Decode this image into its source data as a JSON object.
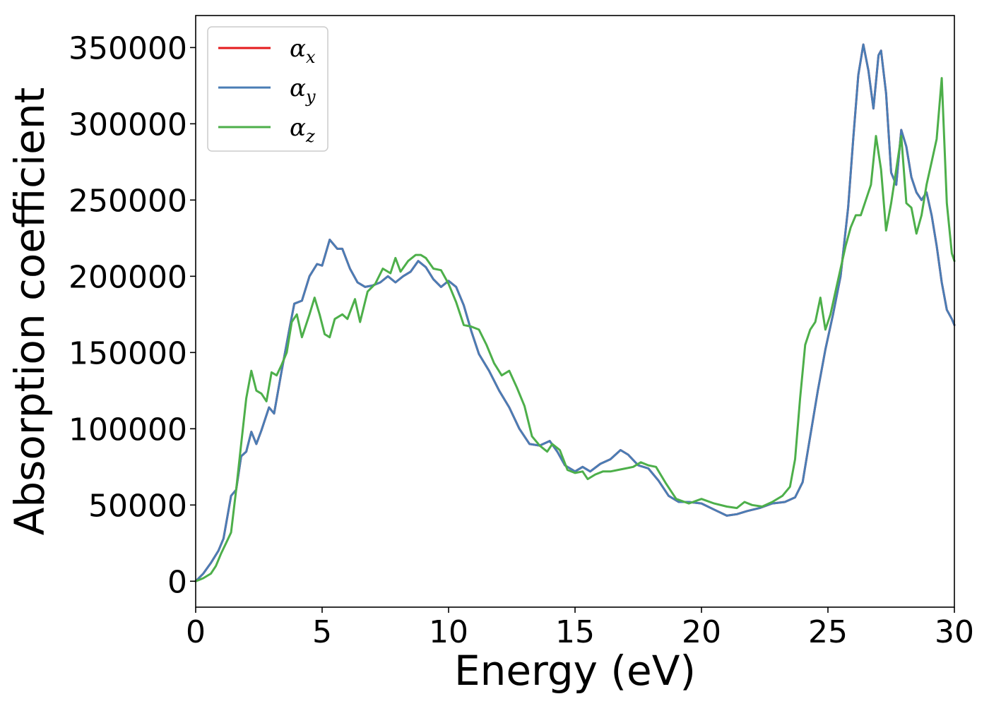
{
  "chart_data": {
    "type": "line",
    "xlabel": "Energy (eV)",
    "ylabel": "Absorption coefficient",
    "xlim": [
      0,
      30
    ],
    "ylim": [
      -17000,
      371000
    ],
    "xticks": [
      0,
      5,
      10,
      15,
      20,
      25,
      30
    ],
    "yticks": [
      0,
      50000,
      100000,
      150000,
      200000,
      250000,
      300000,
      350000
    ],
    "grid": false,
    "legend_placement": "top-left",
    "series": [
      {
        "name": "α",
        "sub": "x",
        "color": "#e41a1c",
        "x": [
          0,
          0.3,
          0.6,
          0.9,
          1.1,
          1.4,
          1.6,
          1.8,
          2.0,
          2.2,
          2.4,
          2.6,
          2.9,
          3.1,
          3.4,
          3.7,
          3.9,
          4.2,
          4.5,
          4.8,
          5.0,
          5.3,
          5.6,
          5.8,
          6.1,
          6.4,
          6.7,
          7.0,
          7.3,
          7.6,
          7.9,
          8.2,
          8.5,
          8.8,
          9.1,
          9.4,
          9.7,
          10.0,
          10.3,
          10.6,
          10.9,
          11.2,
          11.6,
          12.0,
          12.4,
          12.8,
          13.2,
          13.6,
          14.0,
          14.3,
          14.6,
          15.0,
          15.3,
          15.6,
          16.0,
          16.4,
          16.8,
          17.1,
          17.5,
          17.9,
          18.3,
          18.7,
          19.1,
          19.5,
          20.0,
          20.5,
          21.0,
          21.4,
          21.8,
          22.3,
          22.8,
          23.3,
          23.7,
          24.0,
          24.3,
          24.6,
          24.9,
          25.2,
          25.5,
          25.8,
          26.0,
          26.2,
          26.4,
          26.6,
          26.8,
          27.0,
          27.1,
          27.3,
          27.5,
          27.7,
          27.9,
          28.1,
          28.3,
          28.5,
          28.7,
          28.9,
          29.1,
          29.3,
          29.5,
          29.7,
          29.9,
          30.0
        ],
        "y": [
          0,
          5000,
          12000,
          20000,
          28000,
          56000,
          60000,
          82000,
          85000,
          98000,
          90000,
          99000,
          114000,
          110000,
          138000,
          165000,
          182000,
          184000,
          200000,
          208000,
          207000,
          224000,
          218000,
          218000,
          205000,
          196000,
          193000,
          194000,
          196000,
          200000,
          196000,
          200000,
          203000,
          210000,
          206000,
          198000,
          193000,
          197000,
          193000,
          181000,
          164000,
          149000,
          138000,
          125000,
          114000,
          100000,
          90000,
          89000,
          92000,
          85000,
          76000,
          72000,
          75000,
          72000,
          77000,
          80000,
          86000,
          83000,
          76000,
          74000,
          66000,
          56000,
          52000,
          52000,
          51000,
          47000,
          43000,
          44000,
          46000,
          48000,
          51000,
          52000,
          55000,
          65000,
          95000,
          125000,
          152000,
          175000,
          200000,
          245000,
          290000,
          332000,
          352000,
          335000,
          310000,
          345000,
          348000,
          320000,
          268000,
          260000,
          296000,
          285000,
          265000,
          255000,
          250000,
          255000,
          240000,
          220000,
          196000,
          178000,
          172000,
          168000
        ]
      },
      {
        "name": "α",
        "sub": "y",
        "color": "#4a7db5",
        "x": [
          0,
          0.3,
          0.6,
          0.9,
          1.1,
          1.4,
          1.6,
          1.8,
          2.0,
          2.2,
          2.4,
          2.6,
          2.9,
          3.1,
          3.4,
          3.7,
          3.9,
          4.2,
          4.5,
          4.8,
          5.0,
          5.3,
          5.6,
          5.8,
          6.1,
          6.4,
          6.7,
          7.0,
          7.3,
          7.6,
          7.9,
          8.2,
          8.5,
          8.8,
          9.1,
          9.4,
          9.7,
          10.0,
          10.3,
          10.6,
          10.9,
          11.2,
          11.6,
          12.0,
          12.4,
          12.8,
          13.2,
          13.6,
          14.0,
          14.3,
          14.6,
          15.0,
          15.3,
          15.6,
          16.0,
          16.4,
          16.8,
          17.1,
          17.5,
          17.9,
          18.3,
          18.7,
          19.1,
          19.5,
          20.0,
          20.5,
          21.0,
          21.4,
          21.8,
          22.3,
          22.8,
          23.3,
          23.7,
          24.0,
          24.3,
          24.6,
          24.9,
          25.2,
          25.5,
          25.8,
          26.0,
          26.2,
          26.4,
          26.6,
          26.8,
          27.0,
          27.1,
          27.3,
          27.5,
          27.7,
          27.9,
          28.1,
          28.3,
          28.5,
          28.7,
          28.9,
          29.1,
          29.3,
          29.5,
          29.7,
          29.9,
          30.0
        ],
        "y": [
          0,
          5000,
          12000,
          20000,
          28000,
          56000,
          60000,
          82000,
          85000,
          98000,
          90000,
          99000,
          114000,
          110000,
          138000,
          165000,
          182000,
          184000,
          200000,
          208000,
          207000,
          224000,
          218000,
          218000,
          205000,
          196000,
          193000,
          194000,
          196000,
          200000,
          196000,
          200000,
          203000,
          210000,
          206000,
          198000,
          193000,
          197000,
          193000,
          181000,
          164000,
          149000,
          138000,
          125000,
          114000,
          100000,
          90000,
          89000,
          92000,
          85000,
          76000,
          72000,
          75000,
          72000,
          77000,
          80000,
          86000,
          83000,
          76000,
          74000,
          66000,
          56000,
          52000,
          52000,
          51000,
          47000,
          43000,
          44000,
          46000,
          48000,
          51000,
          52000,
          55000,
          65000,
          95000,
          125000,
          152000,
          175000,
          200000,
          245000,
          290000,
          332000,
          352000,
          335000,
          310000,
          345000,
          348000,
          320000,
          268000,
          260000,
          296000,
          285000,
          265000,
          255000,
          250000,
          255000,
          240000,
          220000,
          196000,
          178000,
          172000,
          168000
        ]
      },
      {
        "name": "α",
        "sub": "z",
        "color": "#4daf4a",
        "x": [
          0,
          0.3,
          0.6,
          0.8,
          1.0,
          1.2,
          1.4,
          1.6,
          1.8,
          2.0,
          2.2,
          2.4,
          2.6,
          2.8,
          3.0,
          3.2,
          3.4,
          3.6,
          3.8,
          4.0,
          4.2,
          4.5,
          4.7,
          4.9,
          5.1,
          5.3,
          5.5,
          5.8,
          6.0,
          6.3,
          6.5,
          6.8,
          7.1,
          7.4,
          7.7,
          7.9,
          8.1,
          8.4,
          8.7,
          8.9,
          9.1,
          9.4,
          9.7,
          10.0,
          10.3,
          10.6,
          10.9,
          11.2,
          11.5,
          11.8,
          12.1,
          12.4,
          12.7,
          13.0,
          13.3,
          13.6,
          13.9,
          14.1,
          14.4,
          14.7,
          15.0,
          15.3,
          15.5,
          15.8,
          16.1,
          16.4,
          16.7,
          17.0,
          17.3,
          17.6,
          17.9,
          18.2,
          18.6,
          19.0,
          19.5,
          20.0,
          20.5,
          21.0,
          21.4,
          21.7,
          22.0,
          22.4,
          22.8,
          23.2,
          23.5,
          23.7,
          23.9,
          24.1,
          24.3,
          24.5,
          24.7,
          24.9,
          25.1,
          25.3,
          25.5,
          25.7,
          25.9,
          26.1,
          26.3,
          26.5,
          26.7,
          26.9,
          27.1,
          27.3,
          27.5,
          27.7,
          27.9,
          28.1,
          28.3,
          28.5,
          28.7,
          28.9,
          29.1,
          29.3,
          29.5,
          29.7,
          29.9,
          30.0
        ],
        "y": [
          0,
          2000,
          5000,
          10000,
          18000,
          25000,
          32000,
          60000,
          90000,
          120000,
          138000,
          125000,
          123000,
          118000,
          137000,
          135000,
          142000,
          150000,
          170000,
          175000,
          160000,
          175000,
          186000,
          175000,
          162000,
          160000,
          172000,
          175000,
          172000,
          185000,
          170000,
          190000,
          195000,
          205000,
          202000,
          212000,
          203000,
          210000,
          214000,
          214000,
          212000,
          205000,
          204000,
          195000,
          183000,
          168000,
          167000,
          165000,
          155000,
          143000,
          135000,
          138000,
          127000,
          115000,
          95000,
          89000,
          85000,
          90000,
          86000,
          73000,
          71000,
          72000,
          67000,
          70000,
          72000,
          72000,
          73000,
          74000,
          75000,
          78000,
          76000,
          75000,
          64000,
          54000,
          51000,
          54000,
          51000,
          49000,
          48000,
          52000,
          50000,
          49000,
          52000,
          56000,
          62000,
          80000,
          120000,
          155000,
          165000,
          170000,
          186000,
          165000,
          175000,
          190000,
          205000,
          220000,
          232000,
          240000,
          240000,
          250000,
          260000,
          292000,
          270000,
          230000,
          248000,
          270000,
          292000,
          248000,
          245000,
          228000,
          240000,
          260000,
          275000,
          290000,
          330000,
          248000,
          215000,
          210000
        ]
      }
    ]
  }
}
